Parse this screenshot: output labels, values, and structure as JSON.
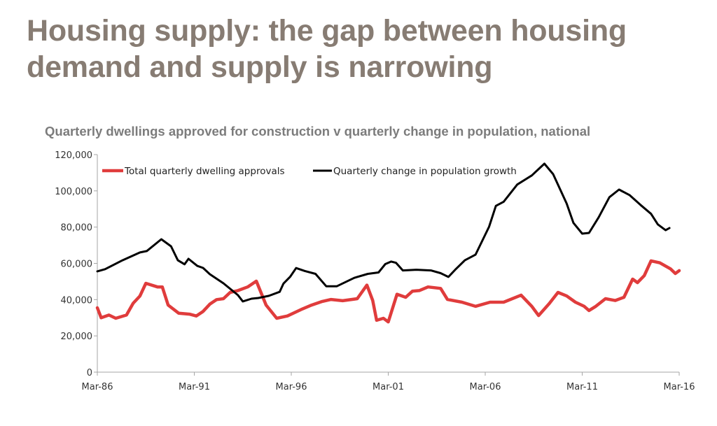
{
  "slide": {
    "title": "Housing supply: the gap between housing demand and supply is narrowing"
  },
  "chart_data": {
    "type": "line",
    "title": "Quarterly dwellings approved for construction v quarterly change in population, national",
    "xlabel": "",
    "ylabel": "",
    "x_range": [
      "Mar-86",
      "Mar-16"
    ],
    "x_ticks": [
      "Mar-86",
      "Mar-91",
      "Mar-96",
      "Mar-01",
      "Mar-06",
      "Mar-11",
      "Mar-16"
    ],
    "y_ticks": [
      "0",
      "20,000",
      "40,000",
      "60,000",
      "80,000",
      "100,000",
      "120,000"
    ],
    "ylim": [
      0,
      120000
    ],
    "grid": false,
    "legend_position": "top-left",
    "x_unit": "years since Mar-86",
    "series": [
      {
        "name": "Total quarterly dwelling approvals",
        "color": "#e03c3c",
        "points": [
          [
            0.0,
            35500
          ],
          [
            0.2,
            30000
          ],
          [
            0.6,
            31500
          ],
          [
            0.95,
            29700
          ],
          [
            1.5,
            31500
          ],
          [
            1.85,
            38000
          ],
          [
            2.2,
            42000
          ],
          [
            2.5,
            49000
          ],
          [
            3.1,
            47000
          ],
          [
            3.35,
            47000
          ],
          [
            3.65,
            37000
          ],
          [
            4.2,
            32500
          ],
          [
            4.75,
            32000
          ],
          [
            5.1,
            31000
          ],
          [
            5.45,
            33500
          ],
          [
            5.8,
            37500
          ],
          [
            6.15,
            40000
          ],
          [
            6.5,
            40500
          ],
          [
            6.85,
            44000
          ],
          [
            7.25,
            45000
          ],
          [
            7.75,
            47000
          ],
          [
            8.2,
            50200
          ],
          [
            8.7,
            37000
          ],
          [
            9.25,
            29700
          ],
          [
            9.8,
            31000
          ],
          [
            10.5,
            34500
          ],
          [
            11.05,
            37000
          ],
          [
            11.6,
            39000
          ],
          [
            12.05,
            40100
          ],
          [
            12.65,
            39400
          ],
          [
            13.4,
            40500
          ],
          [
            13.9,
            48000
          ],
          [
            14.2,
            39500
          ],
          [
            14.4,
            28600
          ],
          [
            14.75,
            29700
          ],
          [
            15.0,
            27700
          ],
          [
            15.45,
            43000
          ],
          [
            15.9,
            41300
          ],
          [
            16.25,
            44700
          ],
          [
            16.6,
            45000
          ],
          [
            17.05,
            47000
          ],
          [
            17.7,
            46200
          ],
          [
            18.05,
            40100
          ],
          [
            18.8,
            38600
          ],
          [
            19.5,
            36300
          ],
          [
            20.25,
            38600
          ],
          [
            20.95,
            38600
          ],
          [
            21.85,
            42500
          ],
          [
            22.4,
            36300
          ],
          [
            22.75,
            31200
          ],
          [
            23.3,
            37800
          ],
          [
            23.75,
            44000
          ],
          [
            24.2,
            42000
          ],
          [
            24.65,
            38600
          ],
          [
            25.1,
            36300
          ],
          [
            25.35,
            34000
          ],
          [
            25.7,
            36300
          ],
          [
            26.2,
            40500
          ],
          [
            26.7,
            39500
          ],
          [
            27.15,
            41300
          ],
          [
            27.6,
            51300
          ],
          [
            27.85,
            49400
          ],
          [
            28.2,
            53200
          ],
          [
            28.55,
            61400
          ],
          [
            29.0,
            60300
          ],
          [
            29.55,
            57000
          ],
          [
            29.8,
            54400
          ],
          [
            30.0,
            56000
          ]
        ]
      },
      {
        "name": "Quarterly change in population growth",
        "color": "#000000",
        "points": [
          [
            0.0,
            55600
          ],
          [
            0.4,
            56800
          ],
          [
            1.3,
            61700
          ],
          [
            2.2,
            66000
          ],
          [
            2.55,
            66800
          ],
          [
            3.3,
            73300
          ],
          [
            3.8,
            69400
          ],
          [
            4.15,
            61700
          ],
          [
            4.5,
            59500
          ],
          [
            4.7,
            62500
          ],
          [
            5.15,
            58600
          ],
          [
            5.45,
            57500
          ],
          [
            5.8,
            54000
          ],
          [
            6.5,
            49000
          ],
          [
            7.25,
            42500
          ],
          [
            7.5,
            39000
          ],
          [
            7.95,
            40500
          ],
          [
            8.3,
            40900
          ],
          [
            8.85,
            42100
          ],
          [
            9.4,
            44300
          ],
          [
            9.6,
            48900
          ],
          [
            9.95,
            52700
          ],
          [
            10.25,
            57400
          ],
          [
            10.7,
            55800
          ],
          [
            11.25,
            54200
          ],
          [
            11.8,
            47400
          ],
          [
            12.35,
            47400
          ],
          [
            13.25,
            52000
          ],
          [
            13.95,
            54200
          ],
          [
            14.5,
            55000
          ],
          [
            14.85,
            59600
          ],
          [
            15.15,
            61000
          ],
          [
            15.4,
            60300
          ],
          [
            15.75,
            56100
          ],
          [
            16.45,
            56500
          ],
          [
            17.2,
            56100
          ],
          [
            17.7,
            54600
          ],
          [
            18.1,
            52500
          ],
          [
            18.45,
            56500
          ],
          [
            18.95,
            61700
          ],
          [
            19.5,
            64800
          ],
          [
            20.2,
            80200
          ],
          [
            20.55,
            91700
          ],
          [
            20.95,
            94000
          ],
          [
            21.65,
            103500
          ],
          [
            22.4,
            108500
          ],
          [
            23.05,
            115000
          ],
          [
            23.5,
            109200
          ],
          [
            24.2,
            93000
          ],
          [
            24.55,
            82300
          ],
          [
            25.0,
            76400
          ],
          [
            25.35,
            76800
          ],
          [
            25.85,
            85400
          ],
          [
            26.4,
            96500
          ],
          [
            26.9,
            100700
          ],
          [
            27.45,
            97600
          ],
          [
            28.0,
            92300
          ],
          [
            28.55,
            87300
          ],
          [
            28.9,
            81500
          ],
          [
            29.3,
            78300
          ],
          [
            29.5,
            79500
          ]
        ]
      }
    ]
  }
}
